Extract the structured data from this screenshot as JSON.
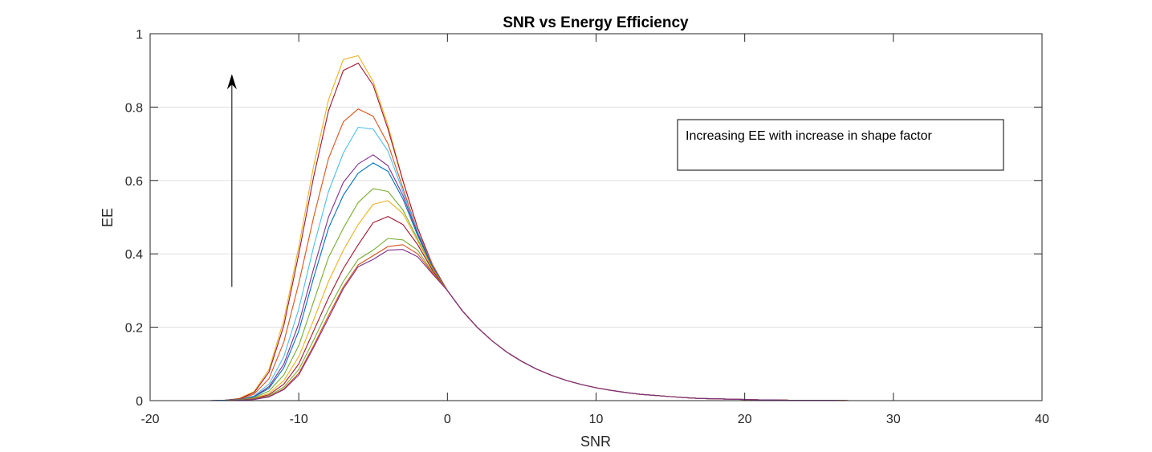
{
  "chart_data": {
    "type": "line",
    "title": "SNR vs Energy Efficiency",
    "xlabel": "SNR",
    "ylabel": "EE",
    "xlim": [
      -20,
      40
    ],
    "ylim": [
      0,
      1
    ],
    "xticks": [
      "-20",
      "-10",
      "0",
      "10",
      "20",
      "30",
      "40"
    ],
    "yticks": [
      "0",
      "0.2",
      "0.4",
      "0.6",
      "0.8",
      "1"
    ],
    "grid": "horizontal",
    "annotation": {
      "text": "Increasing EE with increase in shape factor"
    },
    "arrow": {
      "x": -14.5,
      "y_from": 0.31,
      "y_to": 0.89,
      "color": "#000000"
    },
    "x": [
      -20,
      -19,
      -18,
      -17,
      -16,
      -15,
      -14,
      -13,
      -12,
      -11,
      -10,
      -9,
      -8,
      -7,
      -6,
      -5,
      -4,
      -3,
      -2,
      -1,
      0,
      1,
      2,
      3,
      4,
      5,
      6,
      7,
      8,
      9,
      10,
      11,
      12,
      13,
      14,
      15,
      16,
      17,
      18,
      19,
      20,
      21,
      22,
      23,
      24,
      25,
      26,
      27,
      28,
      29,
      30,
      31,
      32,
      33,
      34,
      35,
      36,
      37,
      38,
      39,
      40
    ],
    "series": [
      {
        "color": "#edb120",
        "values": [
          0,
          0,
          0,
          0,
          0,
          0.001,
          0.006,
          0.025,
          0.085,
          0.22,
          0.42,
          0.64,
          0.82,
          0.93,
          0.94,
          0.87,
          0.75,
          0.6,
          0.47,
          0.37,
          0.3,
          0.245,
          0.2,
          0.163,
          0.132,
          0.107,
          0.086,
          0.069,
          0.055,
          0.044,
          0.035,
          0.028,
          0.022,
          0.017,
          0.014,
          0.011,
          0.008,
          0.006,
          0.005,
          0.004,
          0.003,
          0.002,
          0.002,
          0.001,
          0.001,
          0.001,
          0.001,
          0,
          0,
          0,
          0,
          0,
          0,
          0,
          0,
          0,
          0,
          0,
          0,
          0,
          0
        ]
      },
      {
        "color": "#a2142f",
        "values": [
          0,
          0,
          0,
          0,
          0,
          0.001,
          0.005,
          0.022,
          0.078,
          0.205,
          0.4,
          0.61,
          0.79,
          0.9,
          0.92,
          0.86,
          0.74,
          0.6,
          0.47,
          0.37,
          0.3,
          0.245,
          0.2,
          0.163,
          0.132,
          0.107,
          0.086,
          0.069,
          0.055,
          0.044,
          0.035,
          0.028,
          0.022,
          0.017,
          0.014,
          0.011,
          0.008,
          0.006,
          0.005,
          0.004,
          0.003,
          0.002,
          0.002,
          0.001,
          0.001,
          0.001,
          0.001,
          0,
          0,
          0,
          0,
          0,
          0,
          0,
          0,
          0,
          0,
          0,
          0,
          0,
          0
        ]
      },
      {
        "color": "#d95319",
        "values": [
          0,
          0,
          0,
          0,
          0,
          0.001,
          0.004,
          0.018,
          0.06,
          0.16,
          0.32,
          0.5,
          0.66,
          0.76,
          0.795,
          0.775,
          0.7,
          0.58,
          0.46,
          0.37,
          0.3,
          0.245,
          0.2,
          0.163,
          0.132,
          0.107,
          0.086,
          0.069,
          0.055,
          0.044,
          0.035,
          0.028,
          0.022,
          0.017,
          0.014,
          0.011,
          0.008,
          0.006,
          0.005,
          0.004,
          0.003,
          0.002,
          0.002,
          0.001,
          0.001,
          0.001,
          0.001,
          0,
          0,
          0,
          0,
          0,
          0,
          0,
          0,
          0,
          0,
          0,
          0,
          0,
          0
        ]
      },
      {
        "color": "#4dbeee",
        "values": [
          0,
          0,
          0,
          0,
          0,
          0.001,
          0.003,
          0.013,
          0.045,
          0.12,
          0.25,
          0.42,
          0.57,
          0.675,
          0.745,
          0.74,
          0.68,
          0.57,
          0.46,
          0.365,
          0.3,
          0.245,
          0.2,
          0.163,
          0.132,
          0.107,
          0.086,
          0.069,
          0.055,
          0.044,
          0.035,
          0.028,
          0.022,
          0.017,
          0.014,
          0.011,
          0.008,
          0.006,
          0.005,
          0.004,
          0.003,
          0.002,
          0.002,
          0.001,
          0.001,
          0.001,
          0.001,
          0,
          0,
          0,
          0,
          0,
          0,
          0,
          0,
          0,
          0,
          0,
          0,
          0,
          0
        ]
      },
      {
        "color": "#7e2f8e",
        "values": [
          0,
          0,
          0,
          0,
          0,
          0.001,
          0.003,
          0.011,
          0.038,
          0.1,
          0.21,
          0.36,
          0.5,
          0.595,
          0.645,
          0.67,
          0.64,
          0.56,
          0.455,
          0.365,
          0.3,
          0.245,
          0.2,
          0.163,
          0.132,
          0.107,
          0.086,
          0.069,
          0.055,
          0.044,
          0.035,
          0.028,
          0.022,
          0.017,
          0.014,
          0.011,
          0.008,
          0.006,
          0.005,
          0.004,
          0.003,
          0.002,
          0.002,
          0.001,
          0.001,
          0.001,
          0.001,
          0,
          0,
          0,
          0,
          0,
          0,
          0,
          0,
          0,
          0,
          0,
          0,
          0,
          0
        ]
      },
      {
        "color": "#0072bd",
        "values": [
          0,
          0,
          0,
          0,
          0,
          0.001,
          0.002,
          0.01,
          0.034,
          0.09,
          0.19,
          0.335,
          0.47,
          0.56,
          0.62,
          0.648,
          0.625,
          0.55,
          0.45,
          0.363,
          0.3,
          0.245,
          0.2,
          0.163,
          0.132,
          0.107,
          0.086,
          0.069,
          0.055,
          0.044,
          0.035,
          0.028,
          0.022,
          0.017,
          0.014,
          0.011,
          0.008,
          0.006,
          0.005,
          0.004,
          0.003,
          0.002,
          0.002,
          0.001,
          0.001,
          0.001,
          0.001,
          0,
          0,
          0,
          0,
          0,
          0,
          0,
          0,
          0,
          0,
          0,
          0,
          0,
          0
        ]
      },
      {
        "color": "#77ac30",
        "values": [
          0,
          0,
          0,
          0,
          0,
          0,
          0.002,
          0.008,
          0.026,
          0.07,
          0.15,
          0.27,
          0.39,
          0.47,
          0.54,
          0.578,
          0.57,
          0.52,
          0.44,
          0.36,
          0.3,
          0.245,
          0.2,
          0.163,
          0.132,
          0.107,
          0.086,
          0.069,
          0.055,
          0.044,
          0.035,
          0.028,
          0.022,
          0.017,
          0.014,
          0.011,
          0.008,
          0.006,
          0.005,
          0.004,
          0.003,
          0.002,
          0.002,
          0.001,
          0.001,
          0.001,
          0.001,
          0,
          0,
          0,
          0,
          0,
          0,
          0,
          0,
          0,
          0,
          0,
          0,
          0,
          0
        ]
      },
      {
        "color": "#edb120",
        "values": [
          0,
          0,
          0,
          0,
          0,
          0,
          0.001,
          0.006,
          0.02,
          0.055,
          0.12,
          0.22,
          0.325,
          0.41,
          0.48,
          0.535,
          0.545,
          0.51,
          0.435,
          0.358,
          0.3,
          0.245,
          0.2,
          0.163,
          0.132,
          0.107,
          0.086,
          0.069,
          0.055,
          0.044,
          0.035,
          0.028,
          0.022,
          0.017,
          0.014,
          0.011,
          0.008,
          0.006,
          0.005,
          0.004,
          0.003,
          0.002,
          0.002,
          0.001,
          0.001,
          0.001,
          0.001,
          0,
          0,
          0,
          0,
          0,
          0,
          0,
          0,
          0,
          0,
          0,
          0,
          0,
          0
        ]
      },
      {
        "color": "#a2142f",
        "values": [
          0,
          0,
          0,
          0,
          0,
          0,
          0.001,
          0.005,
          0.016,
          0.045,
          0.1,
          0.19,
          0.28,
          0.36,
          0.425,
          0.485,
          0.502,
          0.48,
          0.425,
          0.355,
          0.3,
          0.245,
          0.2,
          0.163,
          0.132,
          0.107,
          0.086,
          0.069,
          0.055,
          0.044,
          0.035,
          0.028,
          0.022,
          0.017,
          0.014,
          0.011,
          0.008,
          0.006,
          0.005,
          0.004,
          0.003,
          0.002,
          0.002,
          0.001,
          0.001,
          0.001,
          0.001,
          0,
          0,
          0,
          0,
          0,
          0,
          0,
          0,
          0,
          0,
          0,
          0,
          0,
          0
        ]
      },
      {
        "color": "#77ac30",
        "values": [
          0,
          0,
          0,
          0,
          0,
          0,
          0.001,
          0.004,
          0.013,
          0.037,
          0.085,
          0.165,
          0.25,
          0.325,
          0.385,
          0.41,
          0.442,
          0.438,
          0.41,
          0.35,
          0.3,
          0.245,
          0.2,
          0.163,
          0.132,
          0.107,
          0.086,
          0.069,
          0.055,
          0.044,
          0.035,
          0.028,
          0.022,
          0.017,
          0.014,
          0.011,
          0.008,
          0.006,
          0.005,
          0.004,
          0.003,
          0.002,
          0.002,
          0.001,
          0.001,
          0.001,
          0.001,
          0,
          0,
          0,
          0,
          0,
          0,
          0,
          0,
          0,
          0,
          0,
          0,
          0,
          0
        ]
      },
      {
        "color": "#d95319",
        "values": [
          0,
          0,
          0,
          0,
          0,
          0,
          0.001,
          0.003,
          0.011,
          0.032,
          0.075,
          0.15,
          0.232,
          0.31,
          0.37,
          0.395,
          0.42,
          0.425,
          0.4,
          0.348,
          0.3,
          0.245,
          0.2,
          0.163,
          0.132,
          0.107,
          0.086,
          0.069,
          0.055,
          0.044,
          0.035,
          0.028,
          0.022,
          0.017,
          0.014,
          0.011,
          0.008,
          0.006,
          0.005,
          0.004,
          0.003,
          0.002,
          0.002,
          0.001,
          0.001,
          0.001,
          0.001,
          0,
          0,
          0,
          0,
          0,
          0,
          0,
          0,
          0,
          0,
          0,
          0,
          0,
          0
        ]
      },
      {
        "color": "#7e2f8e",
        "values": [
          0,
          0,
          0,
          0,
          0,
          0,
          0.001,
          0.003,
          0.01,
          0.03,
          0.07,
          0.145,
          0.225,
          0.305,
          0.365,
          0.385,
          0.41,
          0.412,
          0.392,
          0.345,
          0.3,
          0.245,
          0.2,
          0.163,
          0.132,
          0.107,
          0.086,
          0.069,
          0.055,
          0.044,
          0.035,
          0.028,
          0.022,
          0.017,
          0.014,
          0.011,
          0.008,
          0.006,
          0.005,
          0.004,
          0.003,
          0.002,
          0.002,
          0.001,
          0.001,
          0.001,
          0.001,
          0,
          0,
          0,
          0,
          0,
          0,
          0,
          0,
          0,
          0,
          0,
          0,
          0,
          0
        ]
      }
    ]
  }
}
